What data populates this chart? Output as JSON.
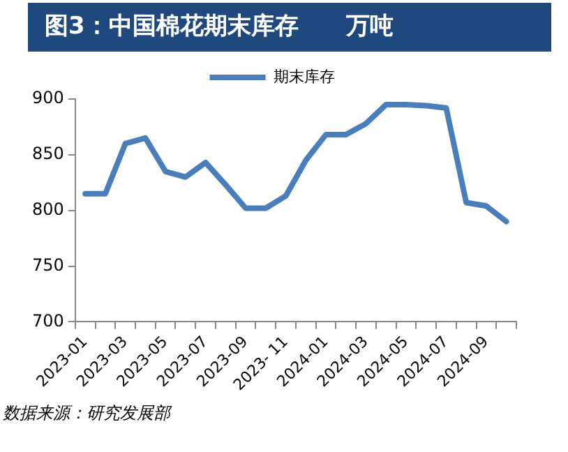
{
  "chart_data": {
    "type": "line",
    "title": "图3：中国棉花期末库存　　万吨",
    "categories": [
      "2023-01",
      null,
      "2023-03",
      null,
      "2023-05",
      null,
      "2023-07",
      null,
      "2023-09",
      null,
      "2023- 11",
      null,
      "2024-01",
      null,
      "2024-03",
      null,
      "2024-05",
      null,
      "2024-07",
      null,
      "2024-09",
      null
    ],
    "series": [
      {
        "name": "期末库存",
        "color": "#4a7ebb",
        "values": [
          815,
          815,
          860,
          865,
          835,
          830,
          843,
          823,
          802,
          802,
          813,
          845,
          868,
          868,
          878,
          895,
          895,
          894,
          892,
          807,
          804,
          790
        ]
      }
    ],
    "ylim": [
      700,
      900
    ],
    "yticks": [
      700,
      750,
      800,
      850,
      900
    ],
    "grid": false,
    "legend": "top",
    "marker": "none",
    "line_style": "solid",
    "annotations": [
      "数据来源：研究发展部"
    ]
  }
}
